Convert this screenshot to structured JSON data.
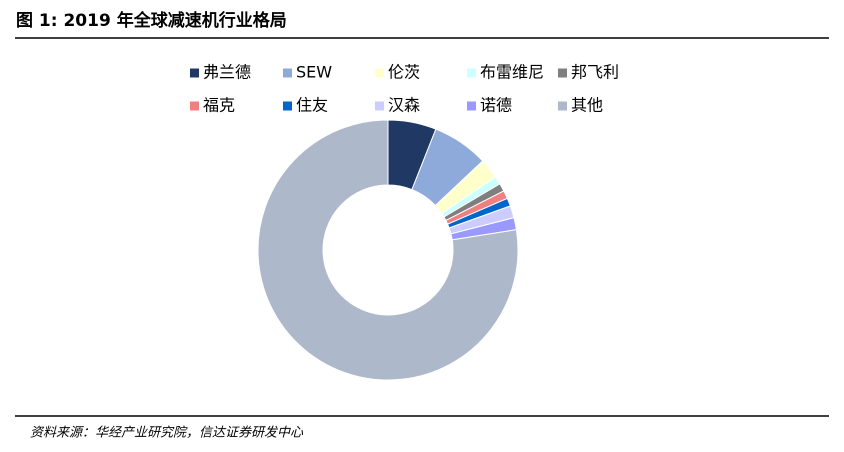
{
  "chart_data": {
    "type": "pie",
    "donut": true,
    "title": "图 1:  2019 年全球减速机行业格局",
    "categories": [
      "弗兰德",
      "SEW",
      "伦茨",
      "布雷维尼",
      "邦飞利",
      "福克",
      "住友",
      "汉森",
      "诺德",
      "其他"
    ],
    "values": [
      6,
      7,
      2.5,
      1,
      1,
      1,
      1,
      1.5,
      1.5,
      77.5
    ],
    "colors": [
      "#1f3864",
      "#8eaadb",
      "#ffffcc",
      "#ccffff",
      "#7f7f7f",
      "#f08080",
      "#0066cc",
      "#ccccff",
      "#9999ff",
      "#adb9ca"
    ],
    "source": "资料来源：华经产业研究院，信达证券研发中心"
  }
}
